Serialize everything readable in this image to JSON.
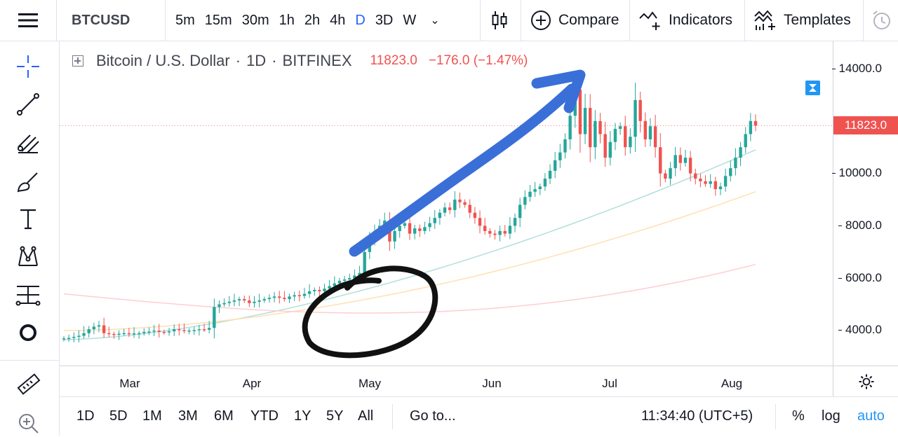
{
  "app": {
    "symbol": "BTCUSD",
    "intervals": [
      {
        "label": "5m",
        "active": false
      },
      {
        "label": "15m",
        "active": false
      },
      {
        "label": "30m",
        "active": false
      },
      {
        "label": "1h",
        "active": false
      },
      {
        "label": "2h",
        "active": false
      },
      {
        "label": "4h",
        "active": false
      },
      {
        "label": "D",
        "active": true
      },
      {
        "label": "3D",
        "active": false
      },
      {
        "label": "W",
        "active": false
      }
    ],
    "compare_label": "Compare",
    "indicators_label": "Indicators",
    "templates_label": "Templates",
    "accent_color": "#2962ff"
  },
  "legend": {
    "name": "Bitcoin / U.S. Dollar",
    "interval": "1D",
    "exchange": "BITFINEX",
    "last": "11823.0",
    "change": "−176.0 (−1.47%)",
    "change_color": "#ef5350"
  },
  "tools": [
    "crosshair-icon",
    "trend-line-icon",
    "fib-icon",
    "brush-icon",
    "text-icon",
    "pattern-icon",
    "measure-prediction-icon",
    "circle-icon",
    "ruler-icon",
    "zoom-in-icon"
  ],
  "price_axis": {
    "ticks": [
      "14000.0",
      "10000.0",
      "8000.0",
      "6000.0",
      "4000.0"
    ],
    "last_price_tag": "11823.0"
  },
  "time_axis": {
    "ticks": [
      "Mar",
      "Apr",
      "May",
      "Jun",
      "Jul",
      "Aug"
    ]
  },
  "bottom_bar": {
    "ranges": [
      "1D",
      "5D",
      "1M",
      "3M",
      "6M",
      "YTD",
      "1Y",
      "5Y",
      "All"
    ],
    "goto_label": "Go to...",
    "clock": "11:34:40 (UTC+5)",
    "percent_label": "%",
    "log_label": "log",
    "auto_label": "auto",
    "auto_color": "#2196f3"
  },
  "chart_data": {
    "type": "candlestick",
    "title": "Bitcoin / U.S. Dollar · 1D · BITFINEX",
    "ylim": [
      2500,
      14600
    ],
    "y_ticks": [
      4000,
      6000,
      8000,
      10000,
      14000
    ],
    "x_labels": [
      "Mar",
      "Apr",
      "May",
      "Jun",
      "Jul",
      "Aug"
    ],
    "up_color": "#26a69a",
    "down_color": "#ef5350",
    "closes_approx": [
      3700,
      3720,
      3760,
      3800,
      3900,
      4050,
      4150,
      4200,
      3900,
      3870,
      3850,
      3880,
      3900,
      3880,
      3890,
      3900,
      3950,
      3960,
      4000,
      3950,
      3930,
      3970,
      4050,
      4020,
      3980,
      4000,
      4020,
      4050,
      4030,
      4100,
      4900,
      5000,
      5050,
      5100,
      5150,
      5200,
      5150,
      5050,
      5100,
      5150,
      5200,
      5250,
      5300,
      5250,
      5200,
      5300,
      5350,
      5320,
      5400,
      5500,
      5550,
      5500,
      5600,
      5700,
      5800,
      5900,
      5950,
      6000,
      6100,
      6200,
      7000,
      7500,
      7800,
      8000,
      8200,
      7400,
      7800,
      8000,
      8100,
      7700,
      7900,
      7800,
      7950,
      8100,
      8300,
      8500,
      8700,
      8600,
      9000,
      8900,
      8800,
      8500,
      8300,
      8000,
      7800,
      7700,
      7650,
      7800,
      7700,
      8000,
      8300,
      8800,
      9100,
      9300,
      9400,
      9500,
      9800,
      10100,
      10500,
      10800,
      11300,
      12200,
      13200,
      11500,
      12500,
      11000,
      12000,
      11500,
      10600,
      11200,
      11700,
      11800,
      11000,
      11400,
      12800,
      12000,
      11300,
      11800,
      11000,
      10000,
      9800,
      10200,
      10700,
      10400,
      10600,
      10000,
      9800,
      9700,
      9600,
      9700,
      9400,
      9500,
      9900,
      10200,
      10600,
      11000,
      11500,
      12000,
      11823
    ],
    "overlays": [
      {
        "name": "MA (fast)",
        "color": "#b2dfdb",
        "start": 3650,
        "end": 10900
      },
      {
        "name": "MA (medium)",
        "color": "#ffe0b2",
        "start": 4000,
        "end": 9300
      },
      {
        "name": "MA (slow)",
        "color": "#ffcdd2",
        "start": 5400,
        "end": 6800
      }
    ],
    "annotations": [
      {
        "type": "arrow",
        "color": "#3b6fd8",
        "description": "hand-drawn blue arrow pointing up to the peak"
      },
      {
        "type": "ellipse",
        "color": "#111111",
        "description": "hand-drawn black circle around late April to early May"
      }
    ]
  }
}
